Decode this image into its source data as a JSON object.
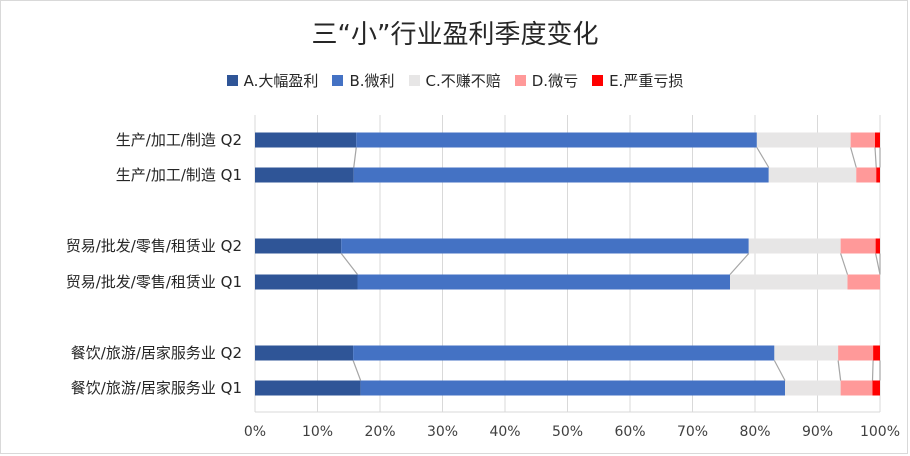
{
  "title": "三“小”行业盈利季度变化",
  "legend": [
    {
      "label": "A.大幅盈利",
      "color": "#2f5597"
    },
    {
      "label": "B.微利",
      "color": "#4472c4"
    },
    {
      "label": "C.不赚不赔",
      "color": "#e7e6e6"
    },
    {
      "label": "D.微亏",
      "color": "#ff9999"
    },
    {
      "label": "E.严重亏损",
      "color": "#ff0000"
    }
  ],
  "chart_data": {
    "type": "bar",
    "orientation": "horizontal",
    "stacked": "100%",
    "title": "三“小”行业盈利季度变化",
    "categories": [
      "生产/加工/制造 Q2",
      "生产/加工/制造 Q1",
      "贸易/批发/零售/租赁业 Q2",
      "贸易/批发/零售/租赁业 Q1",
      "餐饮/旅游/居家服务业 Q2",
      "餐饮/旅游/居家服务业 Q1"
    ],
    "series": [
      {
        "name": "A.大幅盈利",
        "color": "#2f5597",
        "values": [
          16.2,
          15.8,
          13.8,
          16.4,
          15.7,
          16.9
        ]
      },
      {
        "name": "B.微利",
        "color": "#4472c4",
        "values": [
          64.1,
          66.4,
          65.2,
          59.6,
          67.4,
          67.9
        ]
      },
      {
        "name": "C.不赚不赔",
        "color": "#e7e6e6",
        "values": [
          15.0,
          14.0,
          14.7,
          18.8,
          10.2,
          8.9
        ]
      },
      {
        "name": "D.微亏",
        "color": "#ff9999",
        "values": [
          3.9,
          3.2,
          5.6,
          5.2,
          5.6,
          5.1
        ]
      },
      {
        "name": "E.严重亏损",
        "color": "#ff0000",
        "values": [
          0.8,
          0.6,
          0.7,
          0.0,
          1.1,
          1.2
        ]
      }
    ],
    "xticks": [
      "0%",
      "10%",
      "20%",
      "30%",
      "40%",
      "50%",
      "60%",
      "70%",
      "80%",
      "90%",
      "100%"
    ],
    "xlim": [
      0,
      100
    ],
    "grid": true,
    "legend_position": "top",
    "series_lines": true
  }
}
